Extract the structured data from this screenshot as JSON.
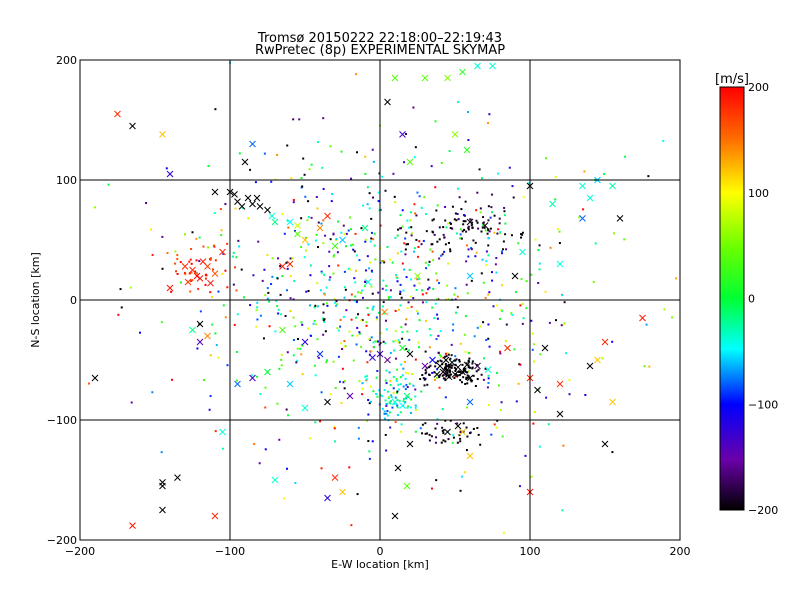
{
  "chart_data": {
    "type": "scatter",
    "title_line1": "Tromsø 20150222 22:18:00–22:19:43",
    "title_line2": "RwPretec (8p) EXPERIMENTAL SKYMAP",
    "xlabel": "E-W location [km]",
    "ylabel": "N-S location [km]",
    "xlim": [
      -200,
      200
    ],
    "ylim": [
      -200,
      200
    ],
    "xticks": [
      -200,
      -100,
      0,
      100,
      200
    ],
    "yticks": [
      -200,
      -100,
      0,
      100,
      200
    ],
    "grid": true,
    "markers": "small dots and crosses (x)",
    "colorbar": {
      "label": "[m/s]",
      "range": [
        -200,
        200
      ],
      "ticks": [
        200,
        100,
        0,
        -100,
        -200
      ],
      "colormap": "black-purple-blue-cyan-green-yellow-red"
    },
    "crosses": [
      {
        "x": -175,
        "y": 155,
        "v": 180
      },
      {
        "x": -165,
        "y": 145,
        "v": -200
      },
      {
        "x": -145,
        "y": 138,
        "v": 120
      },
      {
        "x": -90,
        "y": 115,
        "v": -200
      },
      {
        "x": -85,
        "y": 130,
        "v": -80
      },
      {
        "x": -125,
        "y": 25,
        "v": 180
      },
      {
        "x": -120,
        "y": 18,
        "v": 190
      },
      {
        "x": -115,
        "y": 28,
        "v": 170
      },
      {
        "x": -118,
        "y": 32,
        "v": 185
      },
      {
        "x": -122,
        "y": 20,
        "v": 200
      },
      {
        "x": -128,
        "y": 15,
        "v": 175
      },
      {
        "x": -110,
        "y": 22,
        "v": 160
      },
      {
        "x": -113,
        "y": 14,
        "v": 195
      },
      {
        "x": -130,
        "y": 28,
        "v": 180
      },
      {
        "x": -140,
        "y": 10,
        "v": 190
      },
      {
        "x": -105,
        "y": 40,
        "v": 180
      },
      {
        "x": -100,
        "y": 90,
        "v": -200
      },
      {
        "x": -95,
        "y": 82,
        "v": -200
      },
      {
        "x": -92,
        "y": 78,
        "v": -200
      },
      {
        "x": -88,
        "y": 85,
        "v": -200
      },
      {
        "x": -85,
        "y": 80,
        "v": -200
      },
      {
        "x": -82,
        "y": 85,
        "v": -200
      },
      {
        "x": -80,
        "y": 78,
        "v": -200
      },
      {
        "x": -97,
        "y": 88,
        "v": -200
      },
      {
        "x": -110,
        "y": 90,
        "v": -200
      },
      {
        "x": -75,
        "y": 75,
        "v": -200
      },
      {
        "x": -70,
        "y": 65,
        "v": -20
      },
      {
        "x": -72,
        "y": 70,
        "v": -40
      },
      {
        "x": -60,
        "y": 65,
        "v": -50
      },
      {
        "x": -55,
        "y": 55,
        "v": 40
      },
      {
        "x": -50,
        "y": 50,
        "v": 120
      },
      {
        "x": -55,
        "y": 62,
        "v": 80
      },
      {
        "x": -65,
        "y": 28,
        "v": 190
      },
      {
        "x": -60,
        "y": 30,
        "v": 180
      },
      {
        "x": -40,
        "y": 60,
        "v": 140
      },
      {
        "x": -35,
        "y": 70,
        "v": 180
      },
      {
        "x": -30,
        "y": 45,
        "v": 30
      },
      {
        "x": -25,
        "y": 50,
        "v": -60
      },
      {
        "x": -10,
        "y": 60,
        "v": -20
      },
      {
        "x": 5,
        "y": 165,
        "v": -200
      },
      {
        "x": 15,
        "y": 138,
        "v": -130
      },
      {
        "x": 20,
        "y": 115,
        "v": 40
      },
      {
        "x": 10,
        "y": 185,
        "v": 40
      },
      {
        "x": 30,
        "y": 185,
        "v": 40
      },
      {
        "x": 45,
        "y": 185,
        "v": 60
      },
      {
        "x": 55,
        "y": 190,
        "v": 20
      },
      {
        "x": 65,
        "y": 195,
        "v": -40
      },
      {
        "x": 75,
        "y": 195,
        "v": -40
      },
      {
        "x": 50,
        "y": 138,
        "v": 60
      },
      {
        "x": 58,
        "y": 125,
        "v": 20
      },
      {
        "x": 100,
        "y": 95,
        "v": -200
      },
      {
        "x": 135,
        "y": 95,
        "v": -40
      },
      {
        "x": 145,
        "y": 100,
        "v": -60
      },
      {
        "x": 155,
        "y": 95,
        "v": -30
      },
      {
        "x": 140,
        "y": 85,
        "v": -40
      },
      {
        "x": 115,
        "y": 80,
        "v": -30
      },
      {
        "x": 160,
        "y": 68,
        "v": -200
      },
      {
        "x": 135,
        "y": 68,
        "v": -80
      },
      {
        "x": 60,
        "y": 65,
        "v": -200
      },
      {
        "x": 70,
        "y": 62,
        "v": -200
      },
      {
        "x": 90,
        "y": 20,
        "v": -200
      },
      {
        "x": 175,
        "y": -15,
        "v": 190
      },
      {
        "x": 150,
        "y": -35,
        "v": 180
      },
      {
        "x": 145,
        "y": -50,
        "v": 120
      },
      {
        "x": 140,
        "y": -55,
        "v": -200
      },
      {
        "x": 120,
        "y": -70,
        "v": 180
      },
      {
        "x": 100,
        "y": -65,
        "v": 180
      },
      {
        "x": 105,
        "y": -75,
        "v": -200
      },
      {
        "x": 120,
        "y": -95,
        "v": -200
      },
      {
        "x": 150,
        "y": -120,
        "v": -200
      },
      {
        "x": 155,
        "y": -85,
        "v": 120
      },
      {
        "x": 100,
        "y": -160,
        "v": 190
      },
      {
        "x": 40,
        "y": -55,
        "v": -200
      },
      {
        "x": 42,
        "y": -60,
        "v": -200
      },
      {
        "x": 45,
        "y": -58,
        "v": -200
      },
      {
        "x": 48,
        "y": -52,
        "v": -200
      },
      {
        "x": 50,
        "y": -62,
        "v": -200
      },
      {
        "x": 52,
        "y": -56,
        "v": -200
      },
      {
        "x": 55,
        "y": -60,
        "v": -200
      },
      {
        "x": 46,
        "y": -64,
        "v": -200
      },
      {
        "x": 38,
        "y": -62,
        "v": -200
      },
      {
        "x": 58,
        "y": -54,
        "v": -200
      },
      {
        "x": 44,
        "y": -50,
        "v": -200
      },
      {
        "x": 60,
        "y": -65,
        "v": -200
      },
      {
        "x": 65,
        "y": -55,
        "v": -180
      },
      {
        "x": 30,
        "y": -55,
        "v": -150
      },
      {
        "x": 35,
        "y": -50,
        "v": -100
      },
      {
        "x": 72,
        "y": -58,
        "v": -40
      },
      {
        "x": 60,
        "y": -85,
        "v": -80
      },
      {
        "x": 45,
        "y": -110,
        "v": -200
      },
      {
        "x": 52,
        "y": -105,
        "v": -200
      },
      {
        "x": 55,
        "y": -110,
        "v": 120
      },
      {
        "x": 60,
        "y": -130,
        "v": 120
      },
      {
        "x": 20,
        "y": -120,
        "v": -200
      },
      {
        "x": 12,
        "y": -140,
        "v": -200
      },
      {
        "x": 18,
        "y": -155,
        "v": 40
      },
      {
        "x": 10,
        "y": -180,
        "v": -200
      },
      {
        "x": 0,
        "y": -45,
        "v": -130
      },
      {
        "x": 5,
        "y": -50,
        "v": -150
      },
      {
        "x": -5,
        "y": -48,
        "v": -120
      },
      {
        "x": 15,
        "y": -40,
        "v": 10
      },
      {
        "x": 20,
        "y": -45,
        "v": -200
      },
      {
        "x": 18,
        "y": -80,
        "v": -20
      },
      {
        "x": 10,
        "y": -85,
        "v": -40
      },
      {
        "x": 15,
        "y": -88,
        "v": -50
      },
      {
        "x": -20,
        "y": -80,
        "v": -140
      },
      {
        "x": -35,
        "y": -85,
        "v": -200
      },
      {
        "x": -50,
        "y": -90,
        "v": -40
      },
      {
        "x": -60,
        "y": -70,
        "v": -60
      },
      {
        "x": -75,
        "y": -60,
        "v": 0
      },
      {
        "x": -85,
        "y": -65,
        "v": -130
      },
      {
        "x": -95,
        "y": -70,
        "v": -80
      },
      {
        "x": -65,
        "y": -25,
        "v": 40
      },
      {
        "x": -50,
        "y": -35,
        "v": -120
      },
      {
        "x": -40,
        "y": -45,
        "v": -90
      },
      {
        "x": -120,
        "y": -20,
        "v": -200
      },
      {
        "x": -115,
        "y": -30,
        "v": 140
      },
      {
        "x": -125,
        "y": -25,
        "v": -20
      },
      {
        "x": -120,
        "y": -35,
        "v": -140
      },
      {
        "x": -190,
        "y": -65,
        "v": -200
      },
      {
        "x": -105,
        "y": -110,
        "v": -40
      },
      {
        "x": -135,
        "y": -148,
        "v": -200
      },
      {
        "x": -145,
        "y": -152,
        "v": -200
      },
      {
        "x": -145,
        "y": -155,
        "v": -200
      },
      {
        "x": -145,
        "y": -175,
        "v": -200
      },
      {
        "x": -165,
        "y": -188,
        "v": 190
      },
      {
        "x": -110,
        "y": -180,
        "v": 180
      },
      {
        "x": -70,
        "y": -150,
        "v": -40
      },
      {
        "x": -30,
        "y": -148,
        "v": 180
      },
      {
        "x": -25,
        "y": -160,
        "v": 120
      },
      {
        "x": -35,
        "y": -165,
        "v": -120
      },
      {
        "x": 3,
        "y": -10,
        "v": 140
      },
      {
        "x": -8,
        "y": 15,
        "v": -40
      },
      {
        "x": 25,
        "y": 20,
        "v": 60
      },
      {
        "x": 60,
        "y": 20,
        "v": -60
      },
      {
        "x": 95,
        "y": 40,
        "v": -40
      },
      {
        "x": 85,
        "y": -40,
        "v": 180
      },
      {
        "x": 110,
        "y": -40,
        "v": -200
      },
      {
        "x": 120,
        "y": 30,
        "v": -40
      },
      {
        "x": -140,
        "y": 105,
        "v": -120
      }
    ],
    "dots_seed": 20150222
  }
}
